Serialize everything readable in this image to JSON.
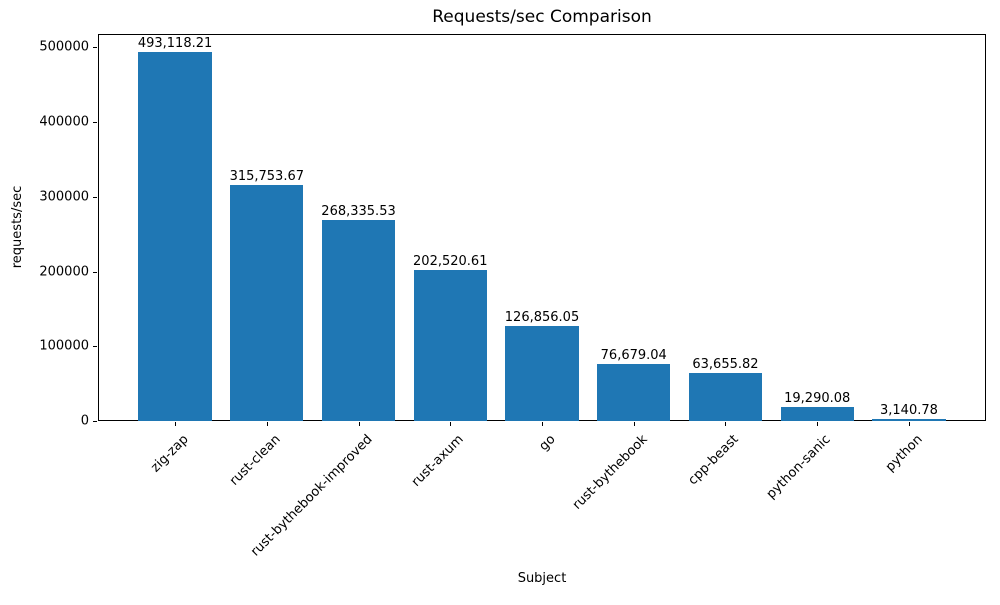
{
  "chart_data": {
    "type": "bar",
    "title": "Requests/sec Comparison",
    "xlabel": "Subject",
    "ylabel": "requests/sec",
    "categories": [
      "zig-zap",
      "rust-clean",
      "rust-bythebook-improved",
      "rust-axum",
      "go",
      "rust-bythebook",
      "cpp-beast",
      "python-sanic",
      "python"
    ],
    "values": [
      493118.21,
      315753.67,
      268335.53,
      202520.61,
      126856.05,
      76679.04,
      63655.82,
      19290.08,
      3140.78
    ],
    "value_labels": [
      "493,118.21",
      "315,753.67",
      "268,335.53",
      "202,520.61",
      "126,856.05",
      "76,679.04",
      "63,655.82",
      "19,290.08",
      "3,140.78"
    ],
    "yticks": [
      0,
      100000,
      200000,
      300000,
      400000,
      500000
    ],
    "ytick_labels": [
      "0",
      "100000",
      "200000",
      "300000",
      "400000",
      "500000"
    ],
    "ylim": [
      0,
      517774
    ],
    "bar_color": "#1f77b4",
    "grid": false,
    "legend": null,
    "xtick_rotation": 45
  }
}
